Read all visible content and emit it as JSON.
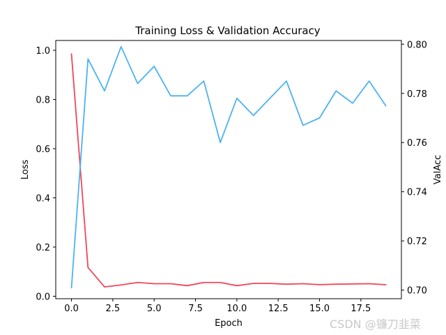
{
  "chart_data": {
    "type": "line",
    "title": "Training Loss & Validation Accuracy",
    "xlabel": "Epoch",
    "ylabel_left": "Loss",
    "ylabel_right": "ValAcc",
    "x": [
      0,
      1,
      2,
      3,
      4,
      5,
      6,
      7,
      8,
      9,
      10,
      11,
      12,
      13,
      14,
      15,
      16,
      17,
      18,
      19
    ],
    "xlim": [
      -0.95,
      19.95
    ],
    "ylim_left": [
      -0.01,
      1.04
    ],
    "ylim_right": [
      0.6965,
      0.8015
    ],
    "x_ticks": [
      "0.0",
      "2.5",
      "5.0",
      "7.5",
      "10.0",
      "12.5",
      "15.0",
      "17.5"
    ],
    "x_tick_values": [
      0,
      2.5,
      5,
      7.5,
      10,
      12.5,
      15,
      17.5
    ],
    "y_left_ticks": [
      "0.0",
      "0.2",
      "0.4",
      "0.6",
      "0.8",
      "1.0"
    ],
    "y_left_tick_values": [
      0,
      0.2,
      0.4,
      0.6,
      0.8,
      1.0
    ],
    "y_right_ticks": [
      "0.70",
      "0.72",
      "0.74",
      "0.76",
      "0.78",
      "0.80"
    ],
    "y_right_tick_values": [
      0.7,
      0.72,
      0.74,
      0.76,
      0.78,
      0.8
    ],
    "grid": false,
    "series": [
      {
        "axis": "left",
        "color": "#f0455a",
        "values": [
          0.985,
          0.117,
          0.038,
          0.046,
          0.056,
          0.051,
          0.051,
          0.043,
          0.056,
          0.056,
          0.043,
          0.052,
          0.052,
          0.049,
          0.051,
          0.047,
          0.049,
          0.05,
          0.051,
          0.047
        ]
      },
      {
        "axis": "right",
        "color": "#4cb2f0",
        "values": [
          0.701,
          0.794,
          0.781,
          0.799,
          0.784,
          0.791,
          0.779,
          0.779,
          0.785,
          0.76,
          0.778,
          0.771,
          0.778,
          0.785,
          0.767,
          0.77,
          0.781,
          0.776,
          0.785,
          0.775
        ]
      }
    ]
  },
  "watermark": "CSDN @镰刀韭菜"
}
